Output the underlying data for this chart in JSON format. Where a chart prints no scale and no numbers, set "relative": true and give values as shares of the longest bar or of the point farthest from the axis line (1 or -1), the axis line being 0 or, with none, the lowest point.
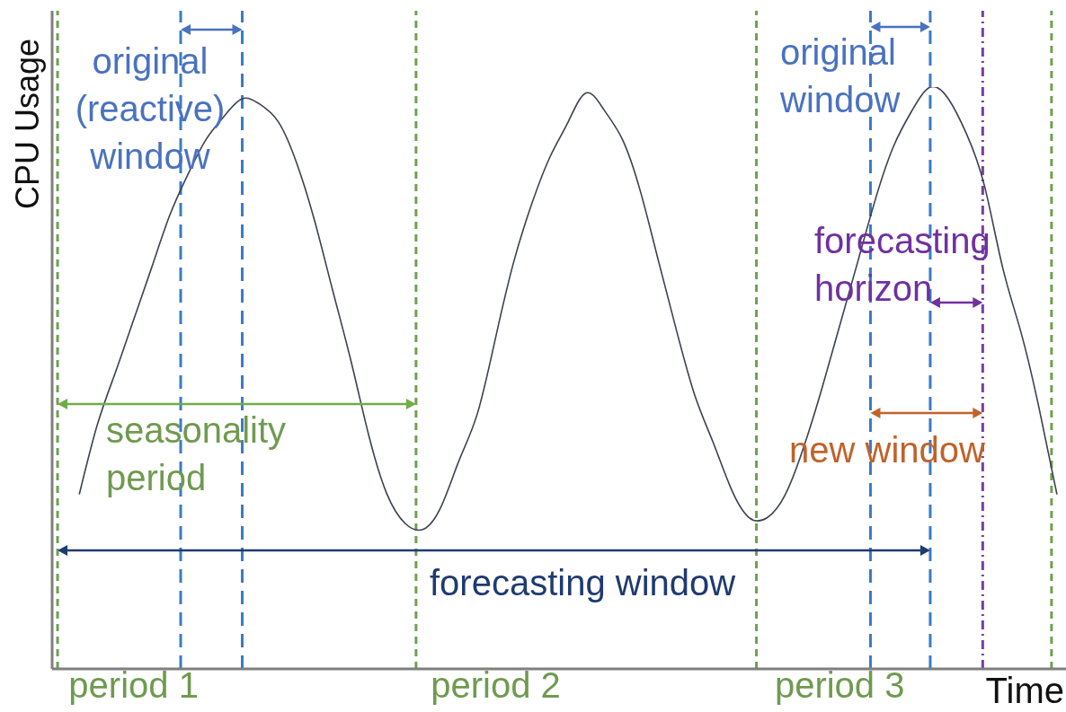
{
  "chart_data": {
    "type": "line",
    "xlabel": "Time",
    "ylabel": "CPU Usage",
    "relative": true,
    "tick_labels": "x",
    "color": "#3c4150",
    "categories": [
      null,
      null,
      null,
      null,
      "period 1",
      null,
      null,
      null,
      null,
      null,
      null,
      null,
      null,
      null,
      null,
      null,
      null,
      null,
      null,
      null,
      null,
      null,
      null,
      null,
      "period 2",
      null,
      null,
      null,
      null,
      null,
      null,
      null,
      null,
      null,
      null,
      null,
      null,
      null,
      null,
      null,
      null,
      null,
      null,
      "period 3",
      null,
      null,
      null,
      null,
      null,
      null,
      null,
      null,
      null,
      null,
      null,
      null
    ],
    "values": [
      null,
      0.3,
      0.42,
      0.51,
      0.6,
      0.69,
      0.78,
      0.85,
      0.91,
      0.95,
      0.98,
      0.97,
      0.94,
      0.87,
      0.77,
      0.65,
      0.53,
      0.4,
      0.3,
      0.25,
      0.24,
      0.28,
      0.36,
      0.44,
      0.57,
      0.7,
      0.8,
      0.88,
      0.94,
      0.99,
      0.96,
      0.91,
      0.82,
      0.7,
      0.58,
      0.47,
      0.39,
      0.31,
      0.26,
      0.26,
      0.3,
      0.38,
      0.48,
      0.59,
      0.7,
      0.81,
      0.9,
      0.96,
      1,
      0.98,
      0.92,
      0.83,
      0.69,
      0.58,
      0.45,
      0.3
    ],
    "annotations": [
      "original (reactive) window",
      "original window",
      "forecasting horizon",
      "seasonality period",
      "new window",
      "forecasting window"
    ]
  }
}
